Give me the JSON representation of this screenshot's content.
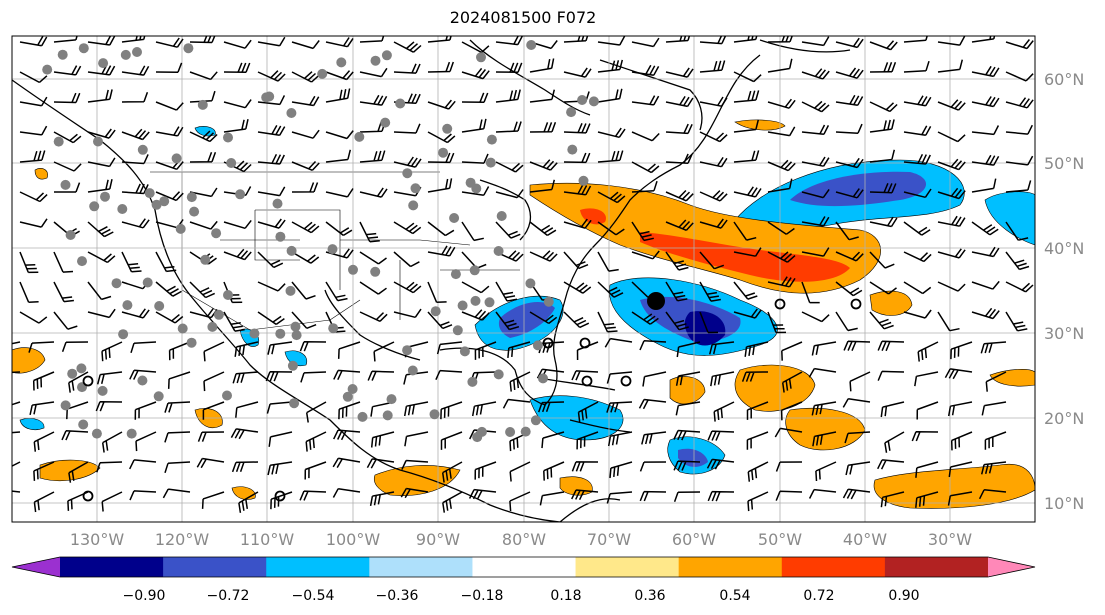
{
  "title": "2024081500 F072",
  "lat_labels": [
    "60°N",
    "50°N",
    "40°N",
    "30°N",
    "20°N",
    "10°N"
  ],
  "lat_values": [
    60,
    50,
    40,
    30,
    20,
    10
  ],
  "lon_labels": [
    "130°W",
    "120°W",
    "110°W",
    "100°W",
    "90°W",
    "80°W",
    "70°W",
    "60°W",
    "50°W",
    "40°W",
    "30°W"
  ],
  "lon_values": [
    -130,
    -120,
    -110,
    -100,
    -90,
    -80,
    -70,
    -60,
    -50,
    -40,
    -30
  ],
  "colorbar": {
    "ticks": [
      "−0.90",
      "−0.72",
      "−0.54",
      "−0.36",
      "−0.18",
      "0.18",
      "0.36",
      "0.54",
      "0.72",
      "0.90"
    ],
    "colors": [
      "#9b30d0",
      "#00008b",
      "#3a52c8",
      "#00bfff",
      "#aee0fb",
      "#ffffff",
      "#ffe88a",
      "#ffa500",
      "#ff3c00",
      "#b22222",
      "#ff88b8"
    ]
  },
  "storm_symbol": "filled-circle",
  "wind_symbol": "wind-barbs",
  "station_symbol": "gray-dots"
}
